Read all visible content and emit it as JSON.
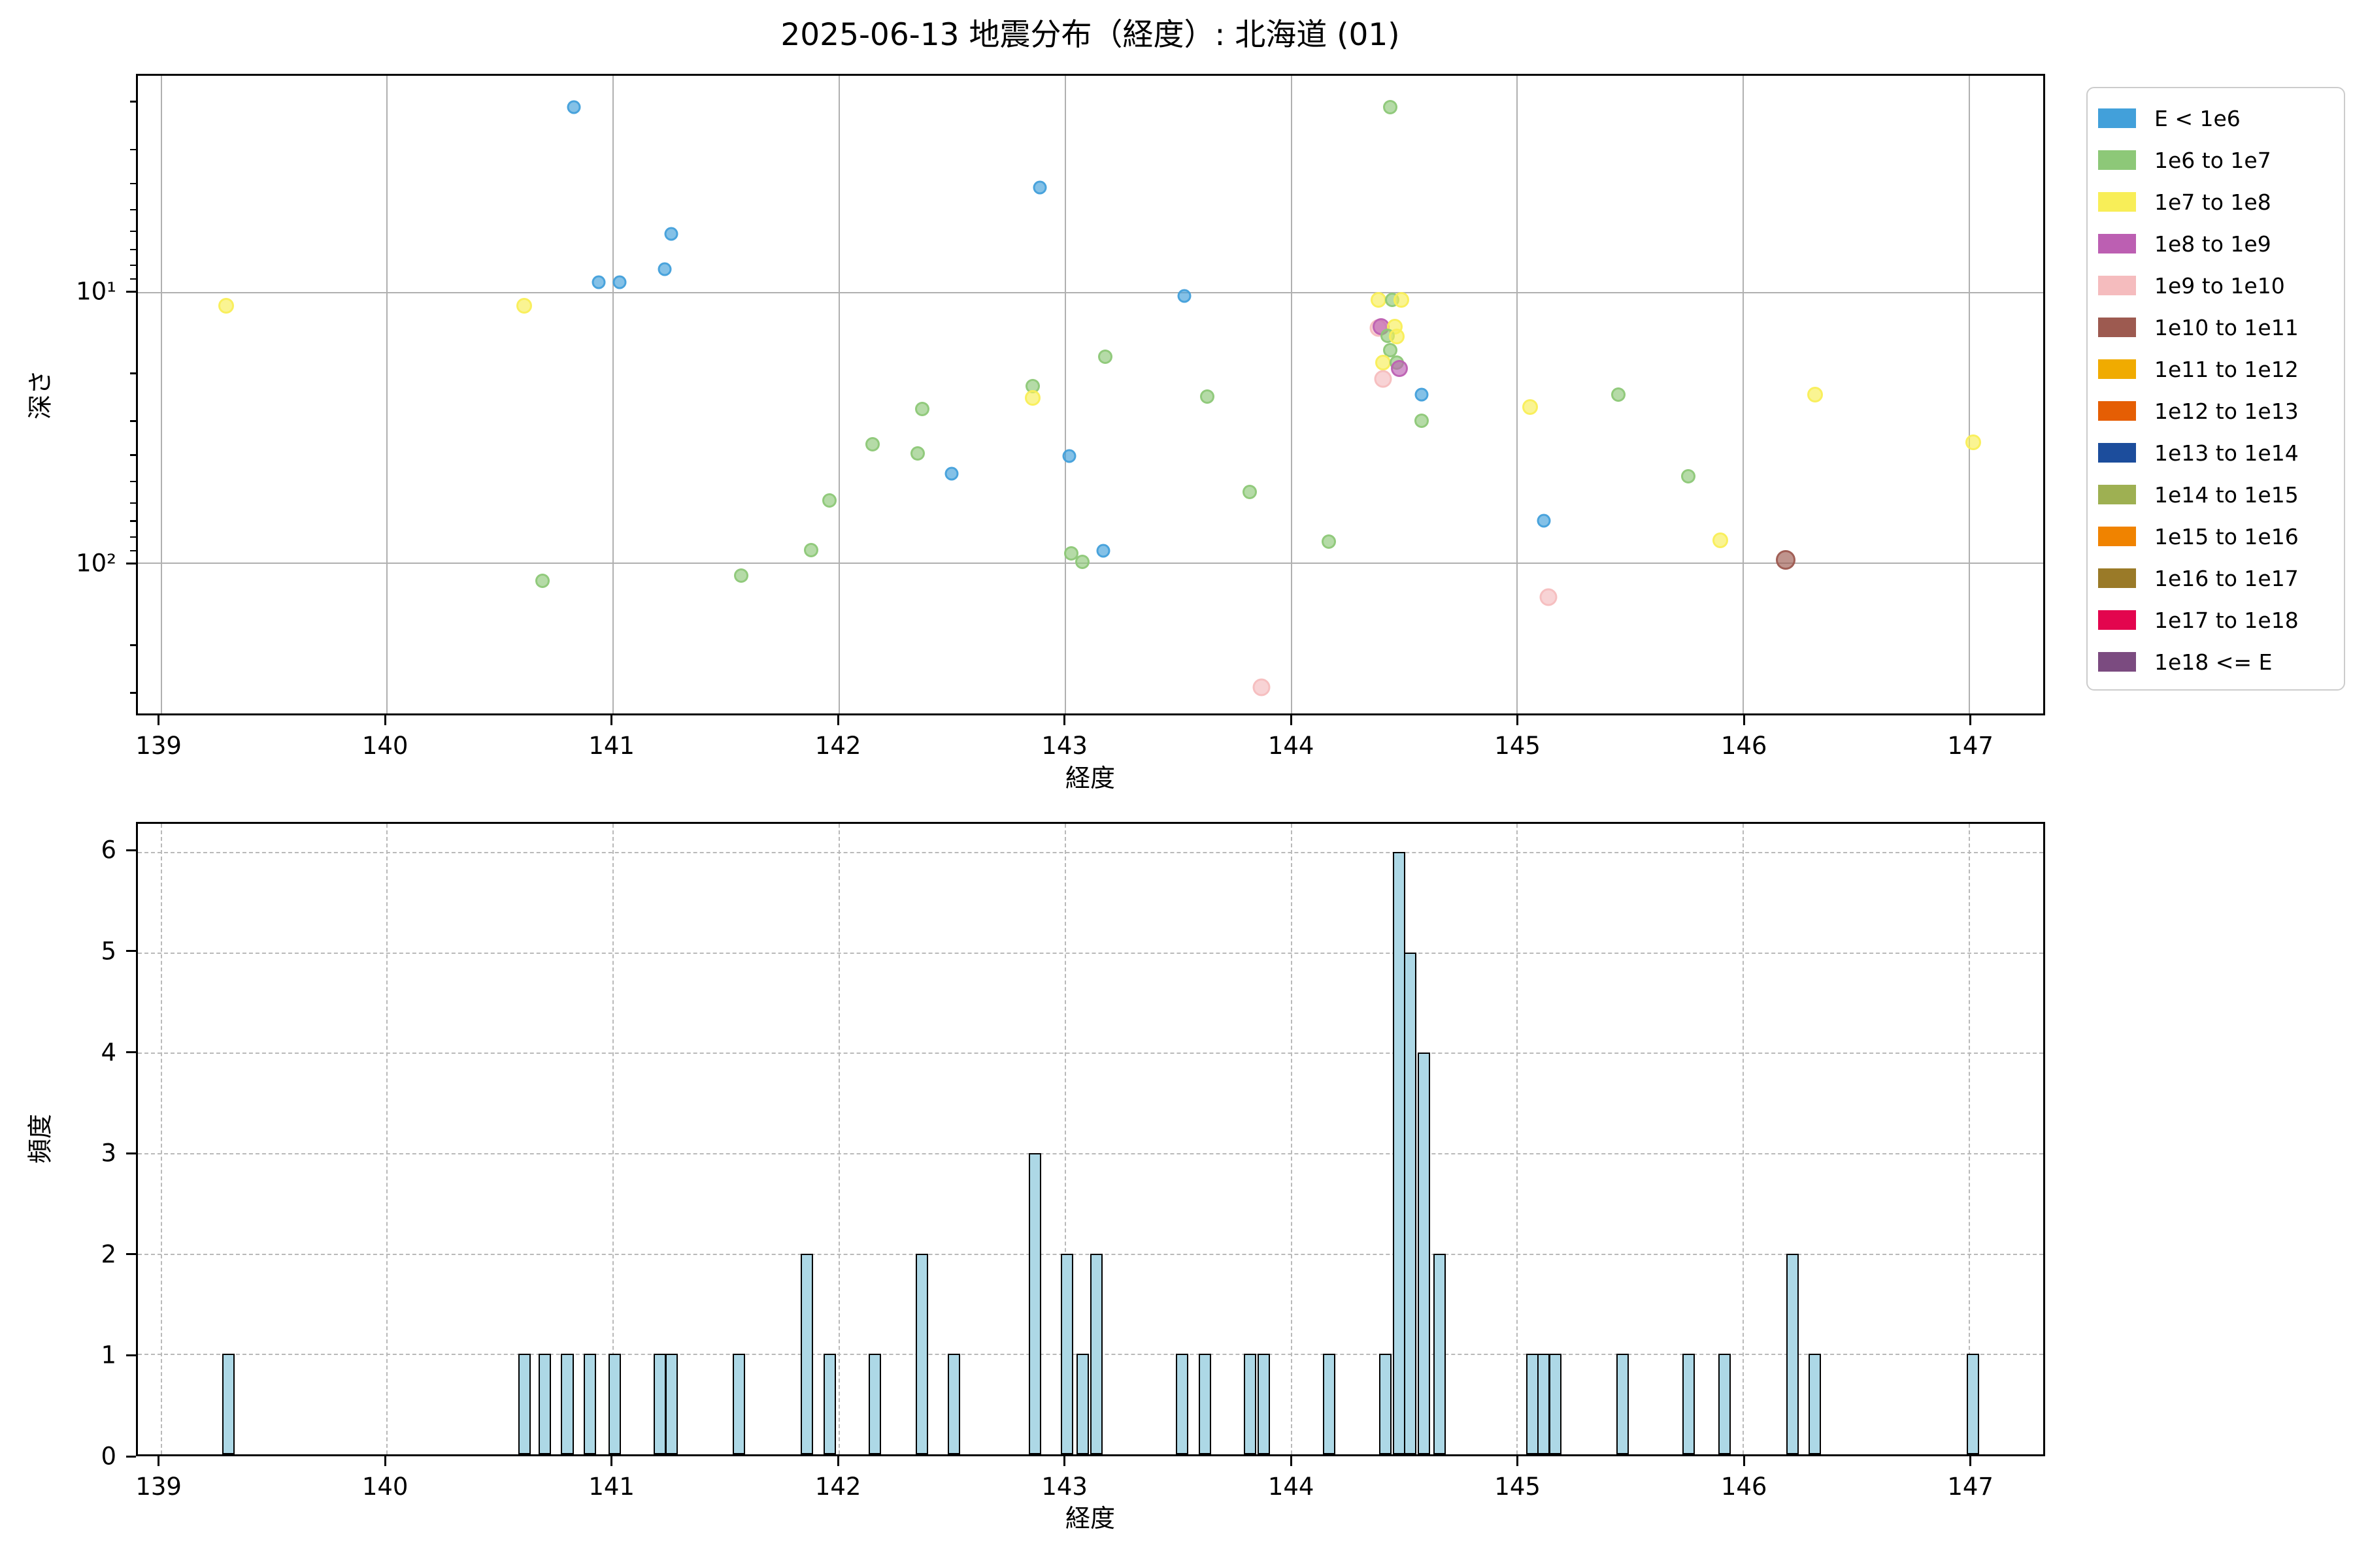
{
  "title": "2025-06-13 地震分布（経度）: 北海道 (01)",
  "axes": {
    "x_label": "経度",
    "scatter_y_label": "深さ",
    "hist_y_label": "頻度",
    "x_ticks": [
      139,
      140,
      141,
      142,
      143,
      144,
      145,
      146,
      147
    ],
    "scatter_y_major_ticks": [
      {
        "value": 10,
        "label": "10¹"
      },
      {
        "value": 100,
        "label": "10²"
      }
    ],
    "scatter_y_minor_ticks": [
      2,
      3,
      4,
      5,
      6,
      7,
      8,
      9,
      20,
      30,
      40,
      50,
      60,
      70,
      80,
      90,
      200,
      300
    ],
    "hist_y_ticks": [
      0,
      1,
      2,
      3,
      4,
      5,
      6
    ]
  },
  "legend": {
    "entries": [
      {
        "label": "E < 1e6",
        "color": "#42a0da"
      },
      {
        "label": "1e6 to 1e7",
        "color": "#8dc878"
      },
      {
        "label": "1e7 to 1e8",
        "color": "#f8ee58"
      },
      {
        "label": "1e8 to 1e9",
        "color": "#bc5fb2"
      },
      {
        "label": "1e9 to 1e10",
        "color": "#f5bcbe"
      },
      {
        "label": "1e10 to 1e11",
        "color": "#9d5a50"
      },
      {
        "label": "1e11 to 1e12",
        "color": "#f0ab00"
      },
      {
        "label": "1e12 to 1e13",
        "color": "#e55e04"
      },
      {
        "label": "1e13 to 1e14",
        "color": "#1c4d9c"
      },
      {
        "label": "1e14 to 1e15",
        "color": "#9eb052"
      },
      {
        "label": "1e15 to 1e16",
        "color": "#f08300"
      },
      {
        "label": "1e16 to 1e17",
        "color": "#9a7a28"
      },
      {
        "label": "1e17 to 1e18",
        "color": "#e3054e"
      },
      {
        "label": "1e18 <= E",
        "color": "#7b4b80"
      }
    ]
  },
  "chart_data": [
    {
      "type": "scatter",
      "title": "2025-06-13 地震分布（経度）: 北海道 (01)",
      "xlabel": "経度",
      "ylabel": "深さ",
      "x_range": [
        138.9,
        147.33
      ],
      "y_scale": "log10, inverted (depth increases downward)",
      "y_range_depth": [
        1.58,
        363
      ],
      "grid": "solid gray at x=139..147 and depth=10,100",
      "legend_position": "outside upper right",
      "series_note": "bin = index into legend.entries (energy class)",
      "points": [
        {
          "x": 139.29,
          "depth": 11.2,
          "bin": 2
        },
        {
          "x": 140.61,
          "depth": 11.2,
          "bin": 2
        },
        {
          "x": 140.69,
          "depth": 117,
          "bin": 1
        },
        {
          "x": 140.83,
          "depth": 2.06,
          "bin": 0
        },
        {
          "x": 140.94,
          "depth": 9.2,
          "bin": 0
        },
        {
          "x": 141.03,
          "depth": 9.2,
          "bin": 0
        },
        {
          "x": 141.23,
          "depth": 8.2,
          "bin": 0
        },
        {
          "x": 141.26,
          "depth": 6.1,
          "bin": 0
        },
        {
          "x": 141.57,
          "depth": 112,
          "bin": 1
        },
        {
          "x": 141.88,
          "depth": 90,
          "bin": 1
        },
        {
          "x": 141.96,
          "depth": 59,
          "bin": 1
        },
        {
          "x": 142.15,
          "depth": 36.5,
          "bin": 1
        },
        {
          "x": 142.35,
          "depth": 39.5,
          "bin": 1
        },
        {
          "x": 142.37,
          "depth": 27,
          "bin": 1
        },
        {
          "x": 142.5,
          "depth": 47,
          "bin": 0
        },
        {
          "x": 142.86,
          "depth": 22.3,
          "bin": 1
        },
        {
          "x": 142.86,
          "depth": 24.6,
          "bin": 2
        },
        {
          "x": 142.89,
          "depth": 4.1,
          "bin": 0
        },
        {
          "x": 143.02,
          "depth": 40.5,
          "bin": 0
        },
        {
          "x": 143.03,
          "depth": 92.5,
          "bin": 1
        },
        {
          "x": 143.08,
          "depth": 99.5,
          "bin": 1
        },
        {
          "x": 143.17,
          "depth": 90.5,
          "bin": 0
        },
        {
          "x": 143.18,
          "depth": 17.3,
          "bin": 1
        },
        {
          "x": 143.53,
          "depth": 10.3,
          "bin": 0
        },
        {
          "x": 143.63,
          "depth": 24.3,
          "bin": 1
        },
        {
          "x": 143.82,
          "depth": 55,
          "bin": 1
        },
        {
          "x": 143.87,
          "depth": 290,
          "bin": 4
        },
        {
          "x": 144.17,
          "depth": 84,
          "bin": 1
        },
        {
          "x": 144.44,
          "depth": 2.06,
          "bin": 1
        },
        {
          "x": 144.39,
          "depth": 10.7,
          "bin": 2
        },
        {
          "x": 144.45,
          "depth": 10.7,
          "bin": 1
        },
        {
          "x": 144.49,
          "depth": 10.7,
          "bin": 2
        },
        {
          "x": 144.39,
          "depth": 13.6,
          "bin": 4
        },
        {
          "x": 144.4,
          "depth": 13.4,
          "bin": 3
        },
        {
          "x": 144.46,
          "depth": 13.4,
          "bin": 2
        },
        {
          "x": 144.43,
          "depth": 14.5,
          "bin": 1
        },
        {
          "x": 144.47,
          "depth": 14.6,
          "bin": 2
        },
        {
          "x": 144.44,
          "depth": 16.4,
          "bin": 1
        },
        {
          "x": 144.41,
          "depth": 18.2,
          "bin": 2
        },
        {
          "x": 144.47,
          "depth": 18.2,
          "bin": 1
        },
        {
          "x": 144.48,
          "depth": 19.2,
          "bin": 3
        },
        {
          "x": 144.41,
          "depth": 21.0,
          "bin": 4
        },
        {
          "x": 144.58,
          "depth": 23.9,
          "bin": 0
        },
        {
          "x": 144.58,
          "depth": 30.0,
          "bin": 1
        },
        {
          "x": 145.06,
          "depth": 26.6,
          "bin": 2
        },
        {
          "x": 145.12,
          "depth": 70,
          "bin": 0
        },
        {
          "x": 145.14,
          "depth": 135,
          "bin": 4
        },
        {
          "x": 145.45,
          "depth": 23.9,
          "bin": 1
        },
        {
          "x": 145.76,
          "depth": 48,
          "bin": 1
        },
        {
          "x": 145.9,
          "depth": 83,
          "bin": 2
        },
        {
          "x": 146.19,
          "depth": 98,
          "bin": 5
        },
        {
          "x": 146.32,
          "depth": 24,
          "bin": 2
        },
        {
          "x": 147.02,
          "depth": 36,
          "bin": 2
        }
      ]
    },
    {
      "type": "bar",
      "xlabel": "経度",
      "ylabel": "頻度",
      "x_range": [
        138.9,
        147.33
      ],
      "ylim": [
        0,
        6.28
      ],
      "bar_width": 0.055,
      "bar_color": "#ADD8E6",
      "bar_edge_color": "#000000",
      "grid": "dashed gray",
      "bars": [
        {
          "x": 139.3,
          "count": 1
        },
        {
          "x": 140.61,
          "count": 1
        },
        {
          "x": 140.7,
          "count": 1
        },
        {
          "x": 140.8,
          "count": 1
        },
        {
          "x": 140.9,
          "count": 1
        },
        {
          "x": 141.01,
          "count": 1
        },
        {
          "x": 141.21,
          "count": 1
        },
        {
          "x": 141.26,
          "count": 1
        },
        {
          "x": 141.56,
          "count": 1
        },
        {
          "x": 141.86,
          "count": 2
        },
        {
          "x": 141.96,
          "count": 1
        },
        {
          "x": 142.16,
          "count": 1
        },
        {
          "x": 142.37,
          "count": 2
        },
        {
          "x": 142.51,
          "count": 1
        },
        {
          "x": 142.87,
          "count": 3
        },
        {
          "x": 143.01,
          "count": 2
        },
        {
          "x": 143.08,
          "count": 1
        },
        {
          "x": 143.14,
          "count": 2
        },
        {
          "x": 143.52,
          "count": 1
        },
        {
          "x": 143.62,
          "count": 1
        },
        {
          "x": 143.82,
          "count": 1
        },
        {
          "x": 143.88,
          "count": 1
        },
        {
          "x": 144.17,
          "count": 1
        },
        {
          "x": 144.42,
          "count": 1
        },
        {
          "x": 144.48,
          "count": 6
        },
        {
          "x": 144.53,
          "count": 5
        },
        {
          "x": 144.59,
          "count": 4
        },
        {
          "x": 144.66,
          "count": 2
        },
        {
          "x": 145.07,
          "count": 1
        },
        {
          "x": 145.12,
          "count": 1
        },
        {
          "x": 145.17,
          "count": 1
        },
        {
          "x": 145.47,
          "count": 1
        },
        {
          "x": 145.76,
          "count": 1
        },
        {
          "x": 145.92,
          "count": 1
        },
        {
          "x": 146.22,
          "count": 2
        },
        {
          "x": 146.32,
          "count": 1
        },
        {
          "x": 147.02,
          "count": 1
        }
      ]
    }
  ],
  "style": {
    "marker_diameters_by_bin": [
      21,
      22,
      24,
      26,
      27,
      30
    ],
    "marker_fill_alpha": 0.65,
    "grid_color": "#b0b0b0"
  }
}
